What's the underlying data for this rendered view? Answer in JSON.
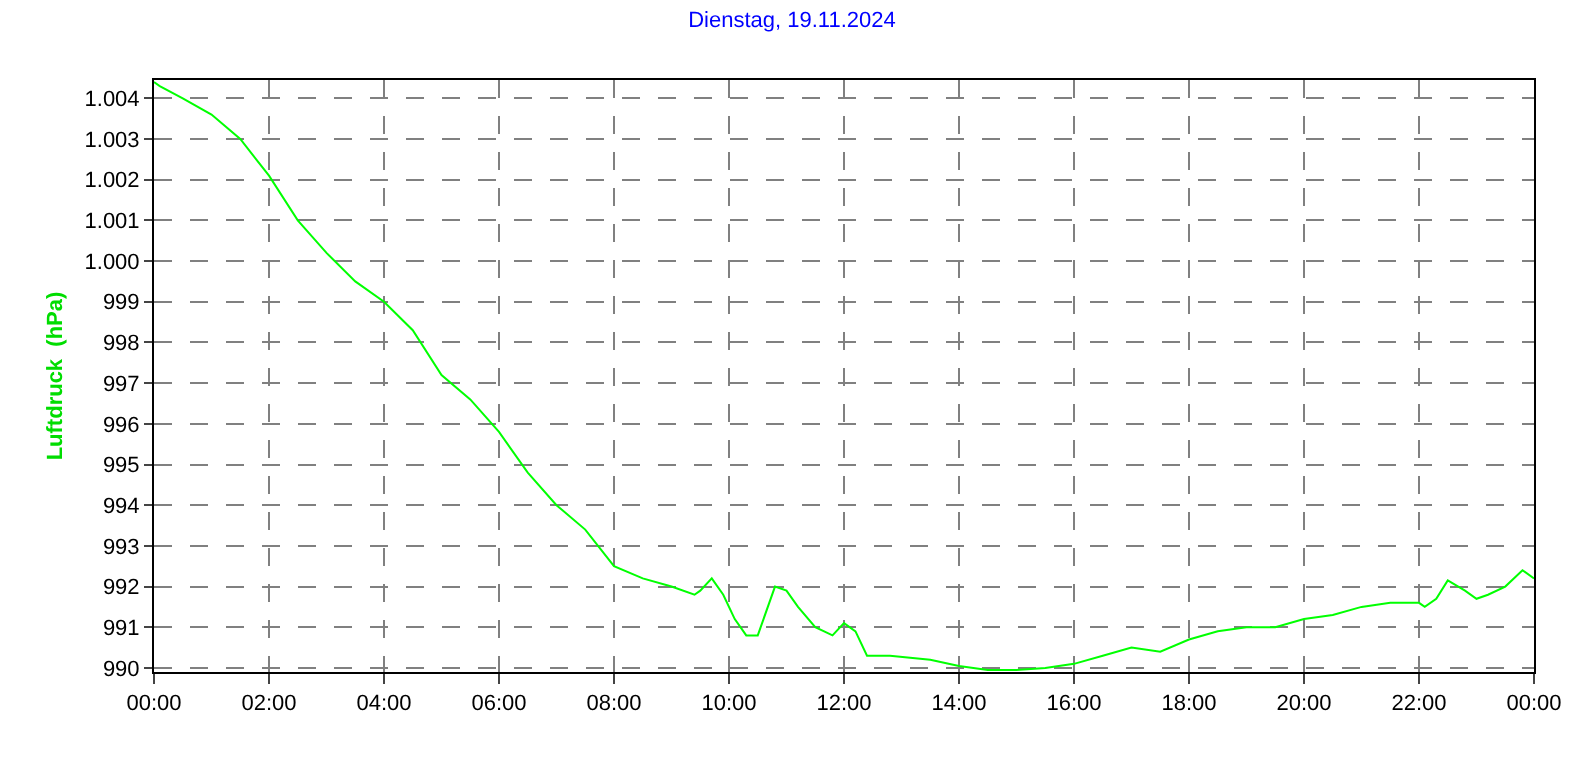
{
  "chart_data": {
    "type": "line",
    "title": "Dienstag, 19.11.2024",
    "ylabel": "Luftdruck  (hPa)",
    "x": [
      0,
      0.1,
      0.5,
      1,
      1.5,
      2,
      2.5,
      3,
      3.5,
      4,
      4.5,
      5,
      5.5,
      6,
      6.5,
      7,
      7.5,
      8,
      8.5,
      9,
      9.4,
      9.5,
      9.7,
      9.9,
      10.1,
      10.3,
      10.5,
      10.8,
      11,
      11.2,
      11.5,
      11.8,
      12,
      12.2,
      12.4,
      12.8,
      13.5,
      14,
      14.5,
      15,
      15.5,
      16,
      16.5,
      17,
      17.5,
      18,
      18.5,
      19,
      19.5,
      20,
      20.5,
      21,
      21.5,
      22,
      22.1,
      22.3,
      22.5,
      22.8,
      23,
      23.2,
      23.5,
      23.8,
      24
    ],
    "series": [
      {
        "color": "#00ff00",
        "values": [
          1004.4,
          1004.3,
          1004.0,
          1003.6,
          1003.0,
          1002.1,
          1001.0,
          1000.2,
          999.5,
          999.0,
          998.3,
          997.2,
          996.6,
          995.8,
          994.8,
          994.0,
          993.4,
          992.5,
          992.2,
          992.0,
          991.8,
          991.9,
          992.2,
          991.8,
          991.2,
          990.8,
          990.8,
          992.0,
          991.9,
          991.5,
          991.0,
          990.8,
          991.1,
          990.9,
          990.3,
          990.3,
          990.2,
          990.05,
          989.95,
          989.95,
          990.0,
          990.1,
          990.3,
          990.5,
          990.4,
          990.7,
          990.9,
          991.0,
          991.0,
          991.2,
          991.3,
          991.5,
          991.6,
          991.6,
          991.5,
          991.7,
          992.15,
          991.9,
          991.7,
          991.8,
          992.0,
          992.4,
          992.2
        ]
      }
    ],
    "xlim": [
      0,
      24
    ],
    "ylim": [
      989.9,
      1004.45
    ],
    "xticks": [
      {
        "value": 0,
        "label": "00:00"
      },
      {
        "value": 2,
        "label": "02:00"
      },
      {
        "value": 4,
        "label": "04:00"
      },
      {
        "value": 6,
        "label": "06:00"
      },
      {
        "value": 8,
        "label": "08:00"
      },
      {
        "value": 10,
        "label": "10:00"
      },
      {
        "value": 12,
        "label": "12:00"
      },
      {
        "value": 14,
        "label": "14:00"
      },
      {
        "value": 16,
        "label": "16:00"
      },
      {
        "value": 18,
        "label": "18:00"
      },
      {
        "value": 20,
        "label": "20:00"
      },
      {
        "value": 22,
        "label": "22:00"
      },
      {
        "value": 24,
        "label": "00:00"
      }
    ],
    "yticks": [
      990,
      991,
      992,
      993,
      994,
      995,
      996,
      997,
      998,
      999,
      {
        "value": 1000,
        "label": "1.000"
      },
      {
        "value": 1001,
        "label": "1.001"
      },
      {
        "value": 1002,
        "label": "1.002"
      },
      {
        "value": 1003,
        "label": "1.003"
      },
      {
        "value": 1004,
        "label": "1.004"
      }
    ],
    "grid": true,
    "marker": "none",
    "line_style": "solid"
  }
}
